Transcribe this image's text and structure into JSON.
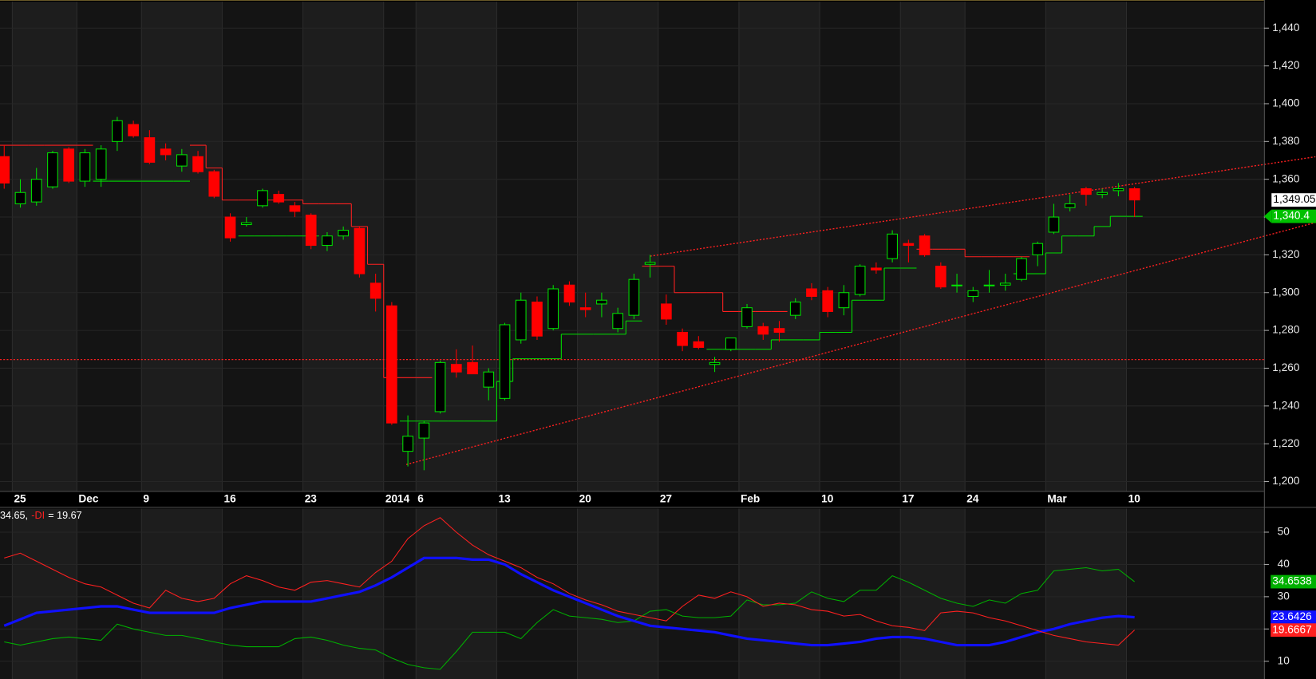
{
  "chart_data": [
    {
      "type": "candlestick",
      "categories": [
        null,
        "25",
        null,
        null,
        null,
        "Dec",
        null,
        null,
        null,
        "9",
        null,
        null,
        null,
        null,
        "16",
        null,
        null,
        null,
        null,
        "23",
        null,
        null,
        null,
        null,
        "2014",
        null,
        "6",
        null,
        null,
        null,
        null,
        "13",
        null,
        null,
        null,
        null,
        "20",
        null,
        null,
        null,
        null,
        "27",
        null,
        null,
        null,
        null,
        "Feb",
        null,
        null,
        null,
        null,
        "10",
        null,
        null,
        null,
        null,
        "17",
        null,
        null,
        null,
        "24",
        null,
        null,
        null,
        null,
        "Mar",
        null,
        null,
        null,
        null,
        "10"
      ],
      "open": [
        1372,
        1347,
        1348,
        1356,
        1376,
        1359,
        1360,
        1380,
        1389,
        1382,
        1376,
        1367,
        1372,
        1364,
        1340,
        1336,
        1346,
        1352,
        1346,
        1341,
        1325,
        1330,
        1334,
        1305,
        1293,
        1216,
        1223,
        1237,
        1262,
        1263,
        1250,
        1244,
        1275,
        1295,
        1281,
        1304,
        1292,
        1294,
        1281,
        1288,
        1315,
        1294,
        1279,
        1274,
        1262,
        1270,
        1282,
        1282,
        1281,
        1288,
        1302,
        1301,
        1292,
        1299,
        1313,
        1318,
        1326,
        1330,
        1314,
        1304,
        1298,
        1304,
        1304,
        1307,
        1320,
        1332,
        1345,
        1355,
        1352,
        1354,
        1355
      ],
      "high": [
        1378,
        1360,
        1366,
        1375,
        1377,
        1376,
        1378,
        1393,
        1391,
        1386,
        1379,
        1376,
        1375,
        1365,
        1342,
        1340,
        1355,
        1354,
        1348,
        1342,
        1332,
        1335,
        1335,
        1310,
        1295,
        1235,
        1232,
        1264,
        1270,
        1272,
        1260,
        1284,
        1300,
        1298,
        1304,
        1306,
        1300,
        1300,
        1292,
        1310,
        1320,
        1299,
        1281,
        1277,
        1266,
        1276,
        1294,
        1284,
        1285,
        1297,
        1305,
        1303,
        1304,
        1315,
        1316,
        1333,
        1328,
        1331,
        1316,
        1310,
        1303,
        1312,
        1310,
        1319,
        1327,
        1347,
        1352,
        1356,
        1355,
        1358,
        1356
      ],
      "low": [
        1355,
        1345,
        1346,
        1355,
        1358,
        1356,
        1356,
        1375,
        1382,
        1368,
        1370,
        1364,
        1363,
        1350,
        1327,
        1335,
        1345,
        1347,
        1340,
        1323,
        1322,
        1328,
        1308,
        1290,
        1230,
        1208,
        1206,
        1236,
        1255,
        1259,
        1243,
        1243,
        1273,
        1275,
        1280,
        1293,
        1287,
        1287,
        1279,
        1286,
        1308,
        1283,
        1269,
        1270,
        1258,
        1269,
        1281,
        1275,
        1274,
        1286,
        1296,
        1287,
        1288,
        1298,
        1310,
        1316,
        1316,
        1319,
        1302,
        1300,
        1295,
        1300,
        1301,
        1306,
        1314,
        1331,
        1343,
        1346,
        1350,
        1351,
        1340
      ],
      "close": [
        1358,
        1353,
        1360,
        1374,
        1359,
        1374,
        1376,
        1391,
        1383,
        1369,
        1373,
        1373,
        1364,
        1351,
        1329,
        1337,
        1354,
        1348,
        1343,
        1325,
        1330,
        1333,
        1310,
        1297,
        1231,
        1224,
        1231,
        1263,
        1258,
        1257,
        1258,
        1283,
        1296,
        1277,
        1302,
        1295,
        1291,
        1296,
        1289,
        1307,
        1316,
        1286,
        1272,
        1271,
        1263,
        1276,
        1292,
        1278,
        1279,
        1295,
        1298,
        1290,
        1300,
        1314,
        1312,
        1331,
        1325,
        1320,
        1303,
        1304,
        1301,
        1304,
        1305,
        1318,
        1326,
        1340,
        1347,
        1352,
        1353,
        1355,
        1349.05
      ],
      "up_color": "#00e000",
      "down_color": "#ff0000",
      "ylim": [
        1195,
        1454
      ],
      "yticks": [
        {
          "value": 1200,
          "label": "1,200"
        },
        {
          "value": 1220,
          "label": "1,220"
        },
        {
          "value": 1240,
          "label": "1,240"
        },
        {
          "value": 1260,
          "label": "1,260"
        },
        {
          "value": 1280,
          "label": "1,280"
        },
        {
          "value": 1300,
          "label": "1,300"
        },
        {
          "value": 1320,
          "label": "1,320"
        },
        {
          "value": 1340,
          "label": "1,340"
        },
        {
          "value": 1360,
          "label": "1,360"
        },
        {
          "value": 1380,
          "label": "1,380"
        },
        {
          "value": 1400,
          "label": "1,400"
        },
        {
          "value": 1420,
          "label": "1,420"
        },
        {
          "value": 1440,
          "label": "1,440"
        }
      ],
      "grid": true,
      "stops": [
        {
          "color": "#ff2020",
          "values": [
            1378,
            1378,
            1378,
            1378,
            1378,
            1378,
            null,
            null,
            null,
            null,
            null,
            null,
            1378,
            1366,
            1349,
            1349,
            1349,
            1349,
            1349,
            1347,
            1347,
            1347,
            1335,
            1315,
            1255,
            1255,
            1255,
            null,
            null,
            null,
            null,
            null,
            null,
            null,
            null,
            null,
            null,
            null,
            null,
            null,
            1314,
            1314,
            1300,
            1300,
            1300,
            1290,
            1290,
            1290,
            1290,
            null,
            null,
            null,
            null,
            null,
            null,
            null,
            null,
            1323,
            1323,
            1323,
            1319,
            1319,
            1319,
            1319,
            null,
            null,
            null,
            null,
            null,
            null,
            null
          ]
        },
        {
          "color": "#00e000",
          "values": [
            null,
            null,
            null,
            null,
            null,
            null,
            1359,
            1359,
            1359,
            1359,
            1359,
            1359,
            null,
            null,
            null,
            1330,
            1330,
            1330,
            1330,
            1330,
            null,
            null,
            null,
            null,
            null,
            1232,
            1232,
            1232,
            1232,
            1232,
            1232,
            1253,
            1265,
            1265,
            1265,
            1278,
            1278,
            1278,
            1278,
            1285,
            null,
            null,
            null,
            null,
            1270,
            1270,
            1270,
            1270,
            1275,
            1275,
            1275,
            1279,
            1279,
            1296,
            1296,
            1313,
            1313,
            null,
            null,
            null,
            null,
            null,
            null,
            1310,
            1310,
            1321,
            1330,
            1330,
            1335,
            1340.4,
            1340.4
          ]
        }
      ],
      "hlines": [
        {
          "value": 1264.6,
          "color": "#ff2020"
        }
      ],
      "trendlines": [
        {
          "color": "#ff2020",
          "points": [
            [
              40,
              1319.3
            ],
            [
              81.2,
              1371.9
            ]
          ]
        },
        {
          "color": "#ff2020",
          "points": [
            [
              24.9,
              1209
            ],
            [
              81.2,
              1337.1
            ]
          ]
        }
      ],
      "markers": [
        {
          "value": 1349.05,
          "label": "1,349.05",
          "color": "#ffffff"
        },
        {
          "value": 1340.4,
          "label": "1,340.4",
          "color": "#00c000"
        }
      ]
    },
    {
      "type": "line",
      "legend": [
        {
          "text": "34.65,",
          "color": "#ffffff"
        },
        {
          "text": "-DI",
          "color": "#ff2020"
        },
        {
          "text": "= 19.67",
          "color": "#ffffff"
        }
      ],
      "ylim": [
        4.5,
        57.3
      ],
      "yticks": [
        10,
        20,
        30,
        40,
        50
      ],
      "series": [
        {
          "color": "#00b000",
          "width": 1,
          "last_label": "34.6538",
          "values": [
            16,
            15,
            16,
            17,
            17.5,
            17,
            16.5,
            21.5,
            20,
            19,
            18,
            18,
            17,
            16,
            15,
            14.5,
            14.5,
            14.5,
            17,
            17.5,
            16.5,
            15,
            14,
            13.5,
            11,
            9,
            8,
            7.5,
            13,
            19,
            19,
            19,
            17,
            22,
            26,
            24,
            23.5,
            23,
            22,
            22.5,
            25.5,
            26,
            24,
            23.5,
            23.5,
            24,
            29,
            27.5,
            27.5,
            28,
            31.5,
            29.5,
            28.5,
            32,
            32,
            36.5,
            34.5,
            32,
            29.5,
            28,
            27,
            29,
            28,
            31,
            32,
            38,
            38.5,
            39,
            38,
            38.5,
            34.6538
          ]
        },
        {
          "color": "#1010ff",
          "width": 3,
          "last_label": "23.6426",
          "values": [
            21,
            23,
            25,
            25.5,
            26,
            26.5,
            27,
            27,
            26,
            25,
            25,
            25,
            25,
            25,
            26.5,
            27.5,
            28.5,
            28.5,
            28.5,
            28.5,
            29.5,
            30.5,
            31.5,
            33.5,
            36,
            39,
            42,
            42,
            42,
            41.5,
            41.5,
            40,
            37,
            34.5,
            32,
            30,
            28,
            26,
            24,
            22.5,
            21,
            20.5,
            20,
            19.5,
            19,
            18,
            17,
            16.5,
            16,
            15.5,
            15,
            15,
            15.5,
            16,
            17,
            17.5,
            17.5,
            17,
            16,
            15,
            15,
            15,
            16,
            17.5,
            19,
            20,
            21.5,
            22.5,
            23.5,
            24,
            23.6426
          ]
        },
        {
          "color": "#ff2020",
          "width": 1,
          "last_label": "19.6667",
          "values": [
            42,
            43.5,
            41,
            38.5,
            36,
            34,
            33,
            30.5,
            28,
            26.5,
            32,
            29.5,
            28.5,
            29.5,
            34,
            36.5,
            35,
            33,
            32,
            34.5,
            35,
            34,
            33,
            37.5,
            41,
            48,
            52,
            54.5,
            50,
            46,
            43,
            41,
            39,
            36,
            34,
            31,
            29,
            27.5,
            25.5,
            24.5,
            23.5,
            22.5,
            27,
            30.5,
            29.5,
            31.5,
            30,
            27,
            28,
            27.5,
            26,
            25.5,
            24,
            24.5,
            22.5,
            21,
            20.5,
            19.5,
            25,
            25.5,
            25,
            23.5,
            22.5,
            21,
            19.5,
            18,
            17,
            16,
            15.5,
            15,
            19.6667
          ]
        }
      ]
    }
  ]
}
